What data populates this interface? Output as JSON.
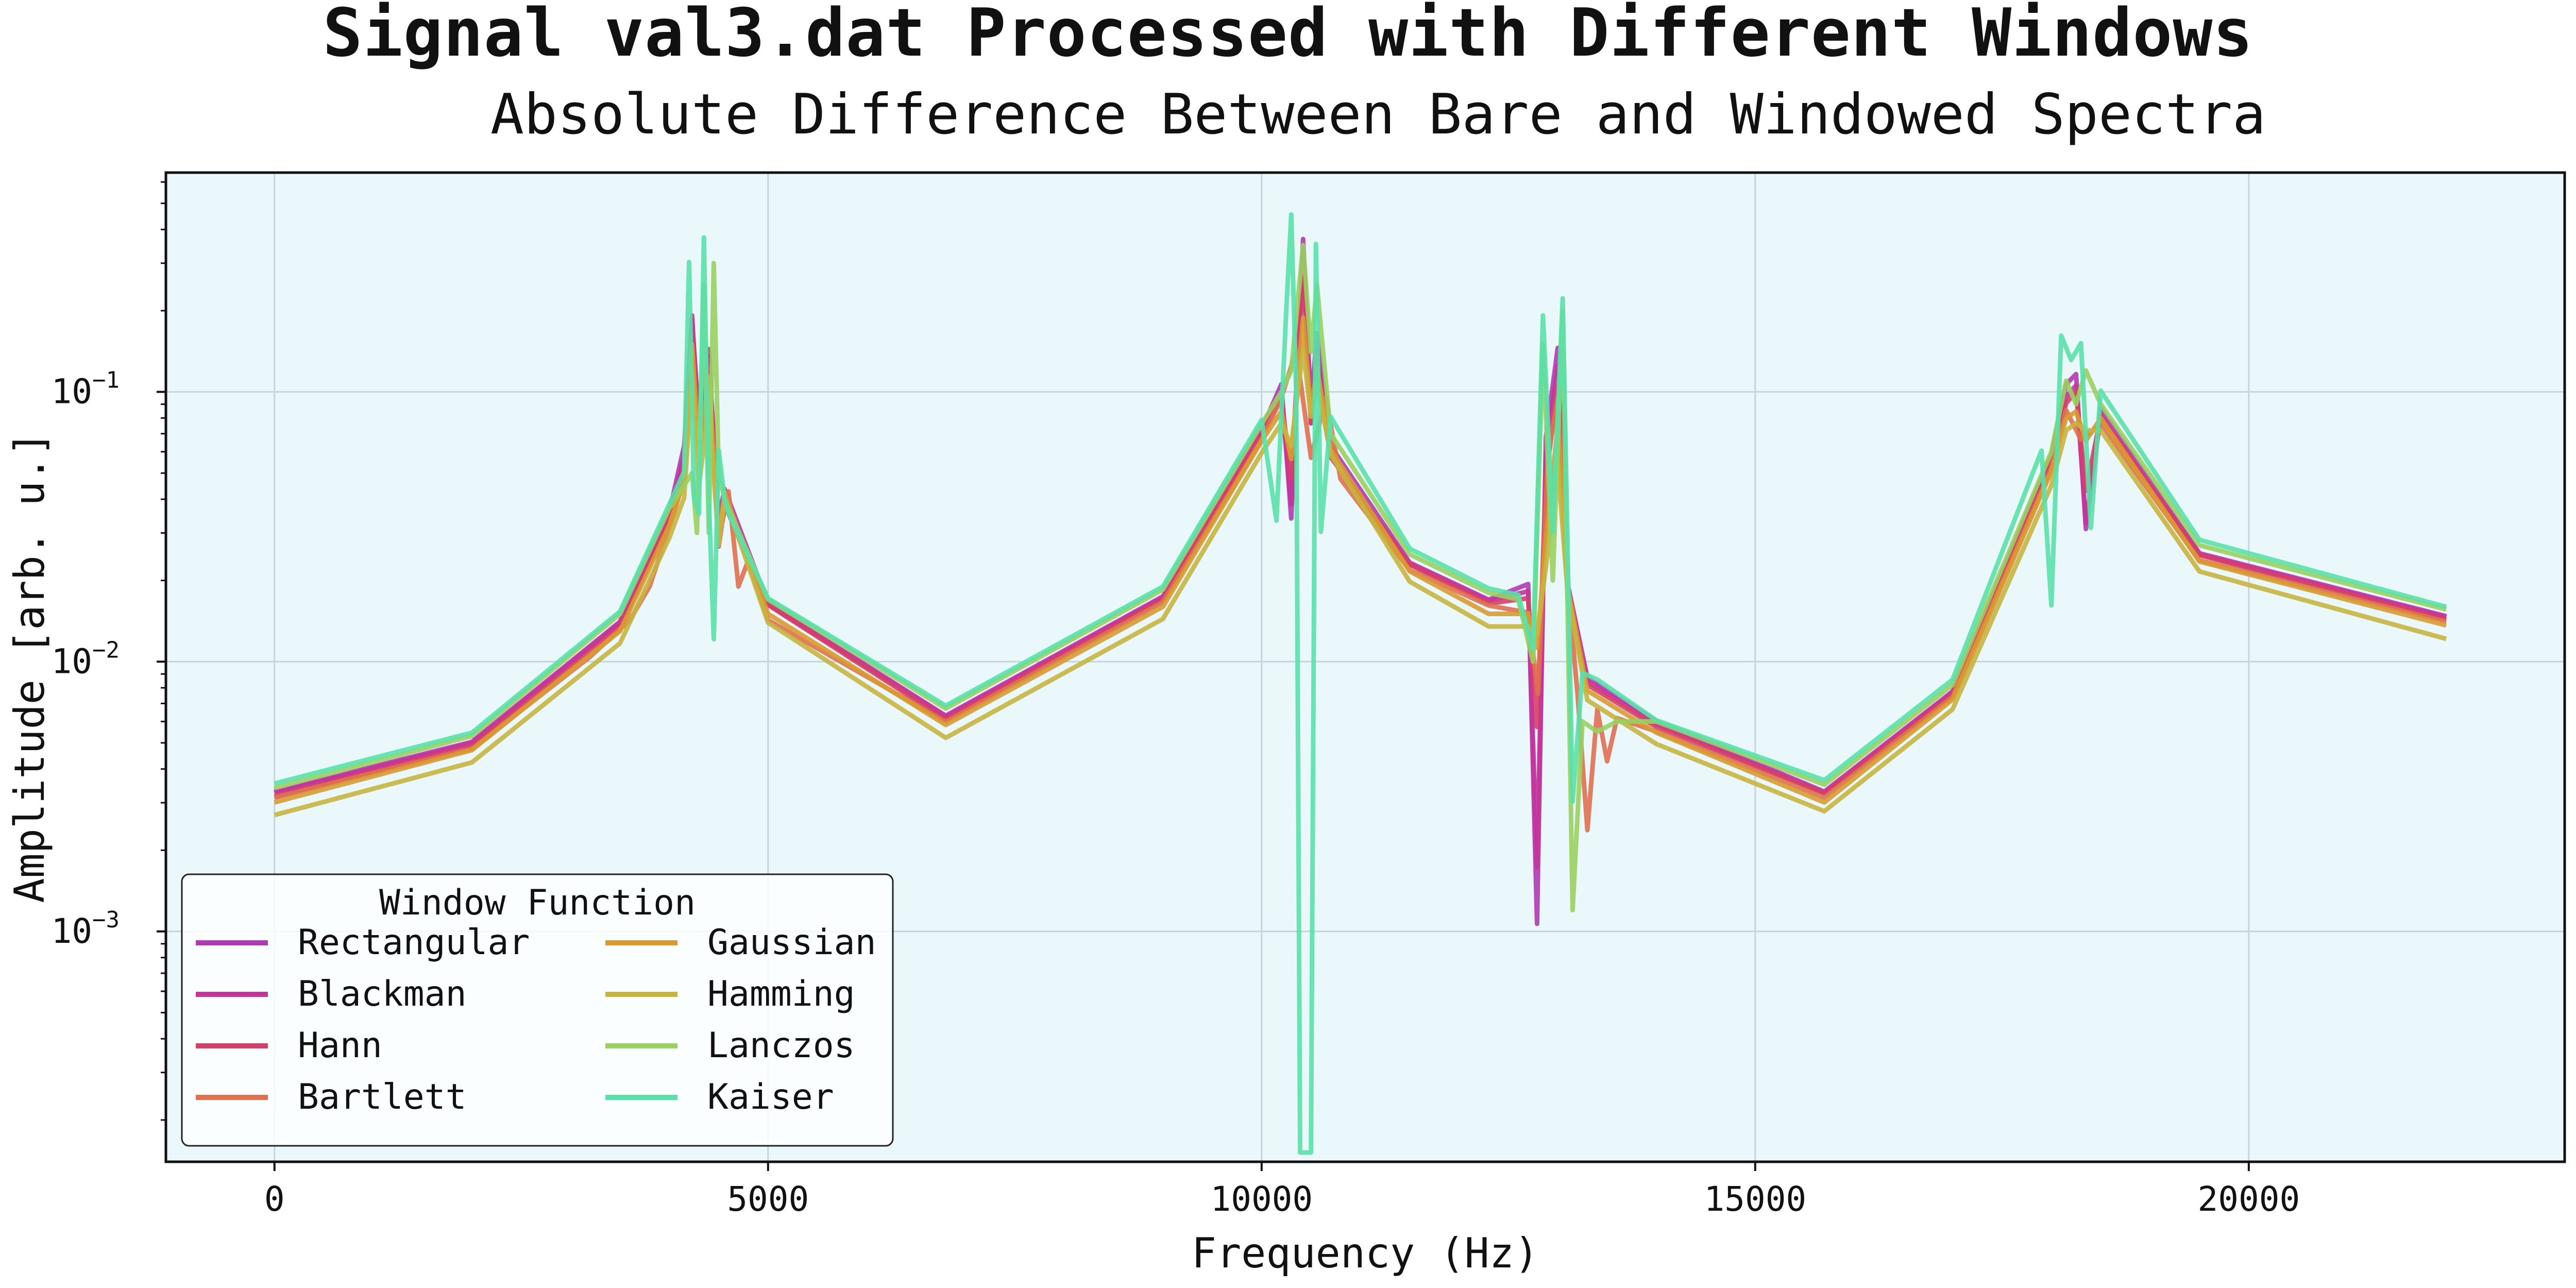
{
  "chart_data": {
    "type": "line",
    "title": "Signal val3.dat Processed with Different Windows",
    "subtitle": "Absolute Difference Between Bare and Windowed Spectra",
    "xlabel": "Frequency (Hz)",
    "ylabel": "Amplitude [arb. u.]",
    "xlim": [
      -1100,
      23200
    ],
    "ylim": [
      0.00014,
      0.65
    ],
    "yscale": "log",
    "x_ticks": [
      0,
      5000,
      10000,
      15000,
      20000
    ],
    "x_tick_labels": [
      "0",
      "5000",
      "10000",
      "15000",
      "20000"
    ],
    "y_ticks": [
      0.001,
      0.01,
      0.1
    ],
    "y_tick_labels": [
      {
        "base": "10",
        "exp": "−3"
      },
      {
        "base": "10",
        "exp": "−2"
      },
      {
        "base": "10",
        "exp": "−1"
      }
    ],
    "grid": true,
    "background_color": "#eaf7fb",
    "legend": {
      "title": "Window Function",
      "placement": "lower-left",
      "columns": 2
    },
    "series": [
      {
        "name": "Rectangular",
        "color": "#b03ab4",
        "scale": 0.97,
        "x": [
          0,
          2000,
          3500,
          4000,
          4150,
          4230,
          4300,
          4400,
          4500,
          4560,
          5000,
          6800,
          9000,
          10000,
          10200,
          10300,
          10420,
          10500,
          10560,
          10700,
          11500,
          12300,
          12700,
          12790,
          12880,
          13000,
          13100,
          13300,
          14000,
          15700,
          17000,
          18000,
          18150,
          18250,
          18350,
          18500,
          19500,
          22000
        ],
        "y": [
          0.0034,
          0.0052,
          0.0145,
          0.037,
          0.065,
          0.19,
          0.08,
          0.14,
          0.035,
          0.045,
          0.017,
          0.0065,
          0.018,
          0.075,
          0.11,
          0.035,
          0.38,
          0.09,
          0.17,
          0.065,
          0.024,
          0.0175,
          0.02,
          0.0011,
          0.07,
          0.15,
          0.02,
          0.009,
          0.0062,
          0.0034,
          0.008,
          0.06,
          0.11,
          0.12,
          0.032,
          0.09,
          0.026,
          0.0152
        ]
      },
      {
        "name": "Blackman",
        "color": "#c4359a",
        "scale": 0.96,
        "x": [
          0,
          2000,
          3500,
          4000,
          4150,
          4230,
          4300,
          4400,
          4500,
          4560,
          5000,
          6800,
          9000,
          10000,
          10200,
          10300,
          10420,
          10500,
          10560,
          10700,
          11500,
          12300,
          12700,
          12790,
          12880,
          13000,
          13100,
          13300,
          14000,
          15700,
          17000,
          18000,
          18150,
          18250,
          18350,
          18500,
          19500,
          22000
        ],
        "y": [
          0.0034,
          0.0052,
          0.0145,
          0.036,
          0.06,
          0.2,
          0.07,
          0.15,
          0.03,
          0.04,
          0.017,
          0.0065,
          0.018,
          0.074,
          0.1,
          0.04,
          0.35,
          0.08,
          0.15,
          0.06,
          0.024,
          0.0175,
          0.019,
          0.0018,
          0.06,
          0.13,
          0.018,
          0.0088,
          0.0061,
          0.0034,
          0.008,
          0.06,
          0.1,
          0.11,
          0.034,
          0.085,
          0.026,
          0.0152
        ]
      },
      {
        "name": "Hann",
        "color": "#d63f6a",
        "scale": 0.955,
        "x": [
          0,
          2000,
          3500,
          4000,
          4150,
          4230,
          4300,
          4400,
          4500,
          4560,
          5000,
          6800,
          9000,
          10000,
          10200,
          10300,
          10420,
          10500,
          10560,
          10700,
          11500,
          12300,
          12700,
          12790,
          12880,
          13000,
          13100,
          13300,
          14000,
          15700,
          17000,
          18000,
          18150,
          18250,
          18350,
          18500,
          19500,
          22000
        ],
        "y": [
          0.0033,
          0.0051,
          0.014,
          0.035,
          0.055,
          0.17,
          0.065,
          0.13,
          0.028,
          0.04,
          0.017,
          0.0064,
          0.0178,
          0.073,
          0.1,
          0.05,
          0.3,
          0.08,
          0.14,
          0.06,
          0.024,
          0.0172,
          0.018,
          0.006,
          0.05,
          0.11,
          0.02,
          0.0086,
          0.006,
          0.0034,
          0.0079,
          0.058,
          0.095,
          0.105,
          0.045,
          0.085,
          0.026,
          0.015
        ]
      },
      {
        "name": "Bartlett",
        "color": "#e07050",
        "scale": 0.95,
        "x": [
          0,
          2000,
          3200,
          3600,
          3800,
          4000,
          4150,
          4230,
          4300,
          4400,
          4500,
          4600,
          4700,
          4800,
          5000,
          6800,
          9000,
          10000,
          10200,
          10350,
          10500,
          10650,
          10800,
          11500,
          12300,
          12700,
          12800,
          12900,
          13000,
          13100,
          13200,
          13300,
          13400,
          13500,
          13600,
          14000,
          15700,
          17000,
          18000,
          18150,
          18300,
          18500,
          19500,
          22000
        ],
        "y": [
          0.0033,
          0.005,
          0.011,
          0.015,
          0.02,
          0.033,
          0.05,
          0.15,
          0.06,
          0.12,
          0.03,
          0.045,
          0.02,
          0.025,
          0.015,
          0.0063,
          0.0175,
          0.07,
          0.1,
          0.15,
          0.06,
          0.1,
          0.05,
          0.023,
          0.017,
          0.016,
          0.008,
          0.06,
          0.1,
          0.02,
          0.008,
          0.0025,
          0.007,
          0.0045,
          0.0065,
          0.0058,
          0.0033,
          0.0078,
          0.055,
          0.09,
          0.07,
          0.08,
          0.025,
          0.0148
        ]
      },
      {
        "name": "Gaussian",
        "color": "#d99a30",
        "scale": 0.94,
        "x": [
          0,
          2000,
          3500,
          4000,
          4150,
          4230,
          4300,
          4400,
          4500,
          4560,
          5000,
          6800,
          9000,
          10000,
          10200,
          10300,
          10420,
          10500,
          10560,
          10700,
          11500,
          12300,
          12700,
          12790,
          12880,
          13000,
          13100,
          13300,
          14000,
          15700,
          17000,
          18000,
          18150,
          18250,
          18350,
          18500,
          19500,
          22000
        ],
        "y": [
          0.0032,
          0.005,
          0.0138,
          0.034,
          0.05,
          0.16,
          0.06,
          0.12,
          0.03,
          0.045,
          0.016,
          0.0062,
          0.017,
          0.07,
          0.09,
          0.06,
          0.2,
          0.09,
          0.13,
          0.065,
          0.023,
          0.016,
          0.016,
          0.012,
          0.03,
          0.08,
          0.02,
          0.0083,
          0.0058,
          0.0032,
          0.0077,
          0.054,
          0.085,
          0.09,
          0.07,
          0.085,
          0.025,
          0.0145
        ]
      },
      {
        "name": "Hamming",
        "color": "#c8b440",
        "scale": 0.9,
        "x": [
          0,
          2000,
          3500,
          4000,
          4150,
          4230,
          4300,
          4400,
          4500,
          4560,
          5000,
          6800,
          9000,
          10000,
          10200,
          10300,
          10420,
          10500,
          10560,
          10700,
          11500,
          12300,
          12700,
          12790,
          12880,
          13000,
          13100,
          13300,
          14000,
          15700,
          17000,
          18000,
          18150,
          18250,
          18350,
          18500,
          19500,
          22000
        ],
        "y": [
          0.003,
          0.0047,
          0.013,
          0.032,
          0.045,
          0.13,
          0.05,
          0.1,
          0.03,
          0.045,
          0.0155,
          0.0058,
          0.016,
          0.066,
          0.085,
          0.07,
          0.16,
          0.09,
          0.12,
          0.065,
          0.022,
          0.015,
          0.015,
          0.014,
          0.025,
          0.06,
          0.02,
          0.008,
          0.0055,
          0.0031,
          0.0074,
          0.05,
          0.08,
          0.085,
          0.08,
          0.08,
          0.024,
          0.0135
        ]
      },
      {
        "name": "Lanczos",
        "color": "#9ad060",
        "scale": 1.0,
        "x": [
          0,
          2000,
          3500,
          4000,
          4150,
          4230,
          4280,
          4350,
          4400,
          4450,
          4500,
          4560,
          5000,
          6800,
          9000,
          10000,
          10200,
          10300,
          10420,
          10500,
          10560,
          10700,
          11500,
          12300,
          12600,
          12750,
          12850,
          12950,
          13050,
          13150,
          13250,
          13400,
          13600,
          14000,
          15700,
          17000,
          18000,
          18150,
          18250,
          18350,
          18500,
          19500,
          22000
        ],
        "y": [
          0.0034,
          0.0053,
          0.015,
          0.037,
          0.045,
          0.05,
          0.03,
          0.25,
          0.03,
          0.3,
          0.05,
          0.04,
          0.017,
          0.0067,
          0.0185,
          0.076,
          0.1,
          0.12,
          0.35,
          0.14,
          0.25,
          0.07,
          0.025,
          0.018,
          0.017,
          0.01,
          0.15,
          0.02,
          0.2,
          0.0012,
          0.006,
          0.0055,
          0.006,
          0.006,
          0.0035,
          0.0082,
          0.06,
          0.11,
          0.09,
          0.12,
          0.09,
          0.027,
          0.0156
        ]
      },
      {
        "name": "Kaiser",
        "color": "#5ae0a8",
        "scale": 1.01,
        "x": [
          0,
          2000,
          3500,
          4000,
          4150,
          4200,
          4250,
          4300,
          4350,
          4400,
          4450,
          4500,
          4560,
          4600,
          5000,
          6800,
          9000,
          10000,
          10150,
          10250,
          10300,
          10350,
          10390,
          10400,
          10500,
          10550,
          10600,
          10700,
          11500,
          12300,
          12600,
          12750,
          12850,
          12950,
          13050,
          13150,
          13250,
          13400,
          14000,
          15700,
          17000,
          17900,
          18000,
          18100,
          18200,
          18300,
          18400,
          18500,
          19500,
          22000
        ],
        "y": [
          0.0035,
          0.0054,
          0.0152,
          0.038,
          0.05,
          0.3,
          0.04,
          0.035,
          0.37,
          0.04,
          0.012,
          0.06,
          0.04,
          0.035,
          0.017,
          0.0068,
          0.0188,
          0.078,
          0.033,
          0.2,
          0.45,
          0.1,
          0.00015,
          0.00015,
          0.00015,
          0.35,
          0.03,
          0.08,
          0.026,
          0.0185,
          0.0175,
          0.011,
          0.19,
          0.03,
          0.22,
          0.003,
          0.009,
          0.0085,
          0.006,
          0.0036,
          0.0085,
          0.06,
          0.016,
          0.16,
          0.13,
          0.15,
          0.031,
          0.1,
          0.028,
          0.0158
        ]
      }
    ]
  }
}
